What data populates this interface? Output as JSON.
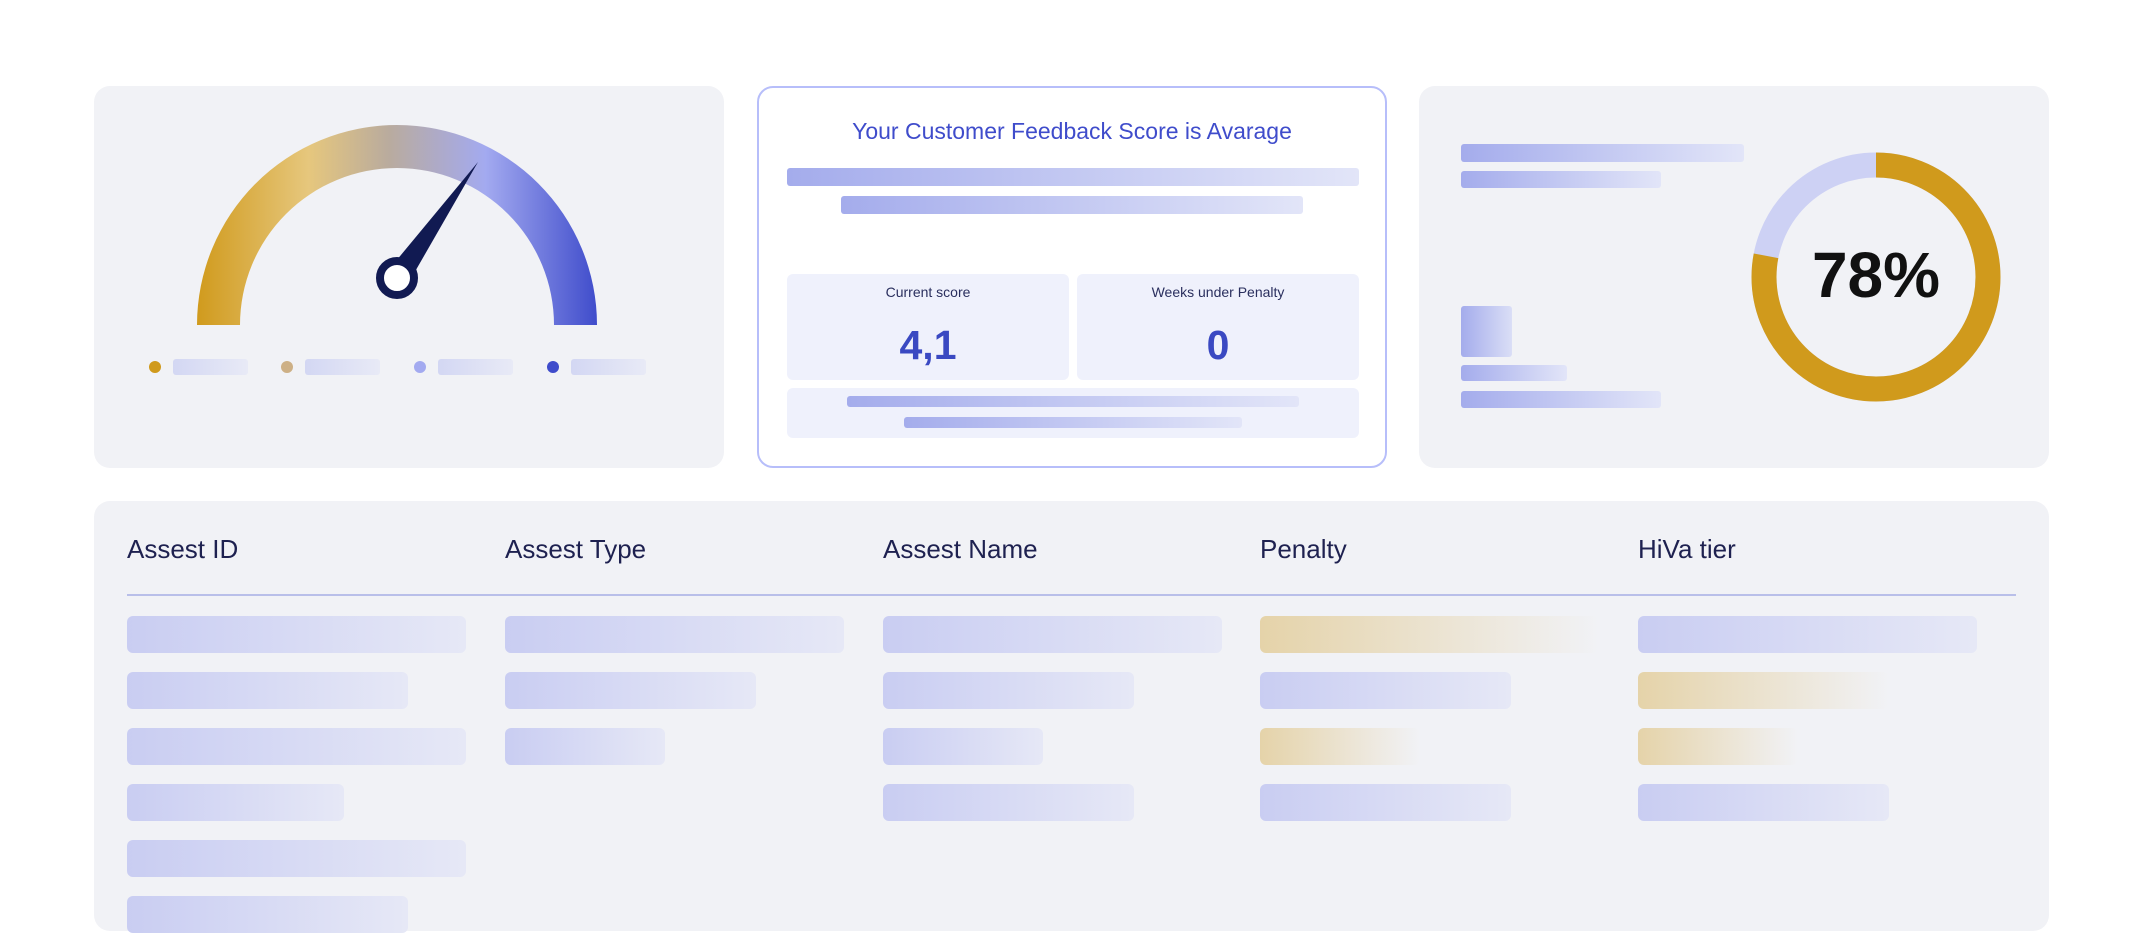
{
  "gauge": {
    "legend": [
      {
        "color": "#d09a1c",
        "icon": "dot-gold-icon"
      },
      {
        "color": "#cdb086",
        "icon": "dot-tan-icon"
      },
      {
        "color": "#a3aaf0",
        "icon": "dot-lavender-icon"
      },
      {
        "color": "#3f4ccb",
        "icon": "dot-blue-icon"
      }
    ],
    "needle_color": "#111a52"
  },
  "score_card": {
    "title": "Your Customer Feedback Score is Avarage",
    "current_score_label": "Current score",
    "current_score_value": "4,1",
    "weeks_label": "Weeks under Penalty",
    "weeks_value": "0",
    "accent": "#3f4ccb",
    "border": "#b7befa"
  },
  "percentage_card": {
    "percent_text": "78%",
    "percent_value": 78,
    "ring_color": "#d09a1c",
    "track_color": "#cdd1f4"
  },
  "table": {
    "columns": [
      "Assest ID",
      "Assest Type",
      "Assest Name",
      "Penalty",
      "HiVa tier"
    ]
  }
}
